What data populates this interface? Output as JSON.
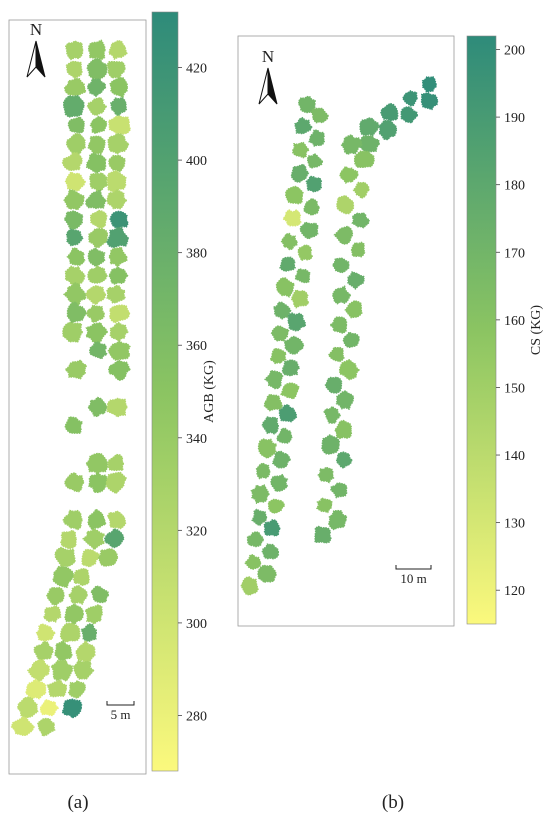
{
  "panels": [
    {
      "id": "a",
      "label": "(a)",
      "north_label": "N",
      "scalebar_label": "5 m",
      "colorbar": {
        "title": "AGB (KG)",
        "min": 268,
        "max": 432,
        "ticks": [
          280,
          300,
          320,
          340,
          360,
          380,
          400,
          420
        ],
        "color_low": "#fbf97d",
        "color_high": "#2e8b7a"
      },
      "tree_crowns": [
        {
          "col": 1,
          "row": 1,
          "value": 330
        },
        {
          "col": 2,
          "row": 1,
          "value": 345
        },
        {
          "col": 3,
          "row": 1,
          "value": 320
        },
        {
          "col": 1,
          "row": 2,
          "value": 325
        },
        {
          "col": 2,
          "row": 2,
          "value": 360
        },
        {
          "col": 3,
          "row": 2,
          "value": 335
        },
        {
          "col": 1,
          "row": 3,
          "value": 340
        },
        {
          "col": 2,
          "row": 3,
          "value": 375
        },
        {
          "col": 3,
          "row": 3,
          "value": 350
        },
        {
          "col": 1,
          "row": 4,
          "value": 385
        },
        {
          "col": 2,
          "row": 4,
          "value": 330
        },
        {
          "col": 3,
          "row": 4,
          "value": 380
        },
        {
          "col": 1,
          "row": 5,
          "value": 360
        },
        {
          "col": 2,
          "row": 5,
          "value": 350
        },
        {
          "col": 3,
          "row": 5,
          "value": 305
        },
        {
          "col": 1,
          "row": 6,
          "value": 335
        },
        {
          "col": 2,
          "row": 6,
          "value": 345
        },
        {
          "col": 3,
          "row": 6,
          "value": 330
        },
        {
          "col": 1,
          "row": 7,
          "value": 320
        },
        {
          "col": 2,
          "row": 7,
          "value": 355
        },
        {
          "col": 3,
          "row": 7,
          "value": 340
        },
        {
          "col": 1,
          "row": 8,
          "value": 300
        },
        {
          "col": 2,
          "row": 8,
          "value": 335
        },
        {
          "col": 3,
          "row": 8,
          "value": 315
        },
        {
          "col": 1,
          "row": 9,
          "value": 345
        },
        {
          "col": 2,
          "row": 9,
          "value": 360
        },
        {
          "col": 3,
          "row": 9,
          "value": 325
        },
        {
          "col": 1,
          "row": 10,
          "value": 365
        },
        {
          "col": 2,
          "row": 10,
          "value": 320
        },
        {
          "col": 3,
          "row": 10,
          "value": 420
        },
        {
          "col": 1,
          "row": 11,
          "value": 395
        },
        {
          "col": 2,
          "row": 11,
          "value": 340
        },
        {
          "col": 3,
          "row": 11,
          "value": 400
        },
        {
          "col": 1,
          "row": 12,
          "value": 350
        },
        {
          "col": 2,
          "row": 12,
          "value": 360
        },
        {
          "col": 3,
          "row": 12,
          "value": 345
        },
        {
          "col": 1,
          "row": 13,
          "value": 330
        },
        {
          "col": 2,
          "row": 13,
          "value": 335
        },
        {
          "col": 3,
          "row": 13,
          "value": 355
        },
        {
          "col": 1,
          "row": 14,
          "value": 345
        },
        {
          "col": 2,
          "row": 14,
          "value": 320
        },
        {
          "col": 3,
          "row": 14,
          "value": 330
        },
        {
          "col": 1,
          "row": 15,
          "value": 360
        },
        {
          "col": 2,
          "row": 15,
          "value": 340
        },
        {
          "col": 3,
          "row": 15,
          "value": 310
        },
        {
          "col": 1,
          "row": 16,
          "value": 335
        },
        {
          "col": 2,
          "row": 16,
          "value": 350
        },
        {
          "col": 3,
          "row": 16,
          "value": 330
        },
        {
          "col": 2,
          "row": 17,
          "value": 370
        },
        {
          "col": 3,
          "row": 17,
          "value": 345
        },
        {
          "col": 1,
          "row": 18,
          "value": 340
        },
        {
          "col": 3,
          "row": 18,
          "value": 355
        },
        {
          "col": 2,
          "row": 20,
          "value": 360
        },
        {
          "col": 3,
          "row": 20,
          "value": 320
        },
        {
          "col": 1,
          "row": 21,
          "value": 355
        },
        {
          "col": 2,
          "row": 23,
          "value": 345
        },
        {
          "col": 3,
          "row": 23,
          "value": 330
        },
        {
          "col": 1,
          "row": 24,
          "value": 340
        },
        {
          "col": 2,
          "row": 24,
          "value": 350
        },
        {
          "col": 3,
          "row": 24,
          "value": 325
        },
        {
          "col": 1,
          "row": 26,
          "value": 335
        },
        {
          "col": 2,
          "row": 26,
          "value": 350
        },
        {
          "col": 3,
          "row": 26,
          "value": 320
        },
        {
          "col": 1,
          "row": 27,
          "value": 320
        },
        {
          "col": 2,
          "row": 27,
          "value": 335
        },
        {
          "col": 3,
          "row": 27,
          "value": 395
        },
        {
          "col": 1,
          "row": 28,
          "value": 330
        },
        {
          "col": 2,
          "row": 28,
          "value": 315
        },
        {
          "col": 3,
          "row": 28,
          "value": 340
        },
        {
          "col": 1,
          "row": 29,
          "value": 345
        },
        {
          "col": 2,
          "row": 29,
          "value": 325
        },
        {
          "col": 1,
          "row": 30,
          "value": 340
        },
        {
          "col": 2,
          "row": 30,
          "value": 330
        },
        {
          "col": 3,
          "row": 30,
          "value": 360
        },
        {
          "col": 1,
          "row": 31,
          "value": 320
        },
        {
          "col": 2,
          "row": 31,
          "value": 345
        },
        {
          "col": 3,
          "row": 31,
          "value": 335
        },
        {
          "col": 1,
          "row": 32,
          "value": 300
        },
        {
          "col": 2,
          "row": 32,
          "value": 325
        },
        {
          "col": 3,
          "row": 32,
          "value": 380
        },
        {
          "col": 1,
          "row": 33,
          "value": 330
        },
        {
          "col": 2,
          "row": 33,
          "value": 345
        },
        {
          "col": 3,
          "row": 33,
          "value": 320
        },
        {
          "col": 1,
          "row": 34,
          "value": 310
        },
        {
          "col": 2,
          "row": 34,
          "value": 335
        },
        {
          "col": 3,
          "row": 34,
          "value": 330
        },
        {
          "col": 1,
          "row": 35,
          "value": 290
        },
        {
          "col": 2,
          "row": 35,
          "value": 320
        },
        {
          "col": 3,
          "row": 35,
          "value": 335
        },
        {
          "col": 1,
          "row": 36,
          "value": 315
        },
        {
          "col": 2,
          "row": 36,
          "value": 280
        },
        {
          "col": 3,
          "row": 36,
          "value": 425
        },
        {
          "col": 1,
          "row": 37,
          "value": 300
        },
        {
          "col": 2,
          "row": 37,
          "value": 325
        }
      ]
    },
    {
      "id": "b",
      "label": "(b)",
      "north_label": "N",
      "scalebar_label": "10 m",
      "colorbar": {
        "title": "CS (KG)",
        "min": 115,
        "max": 202,
        "ticks": [
          120,
          130,
          140,
          150,
          160,
          170,
          180,
          190,
          200
        ],
        "color_low": "#fbf97d",
        "color_high": "#2e8b7a"
      },
      "rows": [
        {
          "name": "row-left",
          "values": [
            170,
            165,
            180,
            172,
            160,
            168,
            175,
            185,
            158,
            166,
            130,
            170,
            162,
            155,
            178,
            168,
            160,
            150,
            172,
            182,
            165,
            170,
            160,
            175,
            168,
            158,
            162,
            188,
            178,
            170,
            160,
            172,
            166,
            170,
            165,
            158,
            175,
            190,
            168,
            172,
            160,
            165,
            150
          ]
        },
        {
          "name": "row-right",
          "values": [
            200,
            198,
            195,
            192,
            190,
            185,
            178,
            172,
            168,
            160,
            158,
            150,
            145,
            170,
            165,
            162,
            170,
            175,
            168,
            160,
            165,
            170,
            162,
            158,
            175,
            170,
            168,
            160,
            172,
            180,
            165,
            170,
            160,
            168,
            175
          ]
        }
      ]
    }
  ]
}
